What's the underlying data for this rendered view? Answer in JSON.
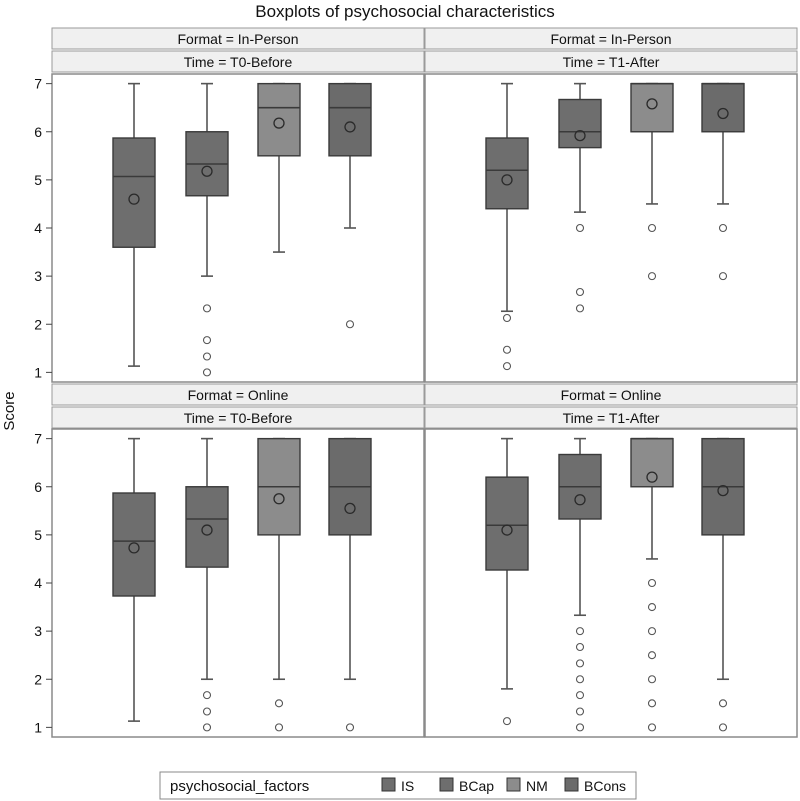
{
  "chart_data": {
    "type": "boxplot",
    "title": "Boxplots of psychosocial characteristics",
    "ylabel": "Score",
    "ylim": [
      0.8,
      7.2
    ],
    "yticks": [
      "1",
      "2",
      "3",
      "4",
      "5",
      "6",
      "7"
    ],
    "legend": {
      "title": "psychosocial_factors",
      "position": "bottom"
    },
    "categories": [
      "IS",
      "BCap",
      "NM",
      "BCons"
    ],
    "colors": {
      "IS": "#6e6e6e",
      "BCap": "#6e6e6e",
      "NM": "#8c8c8c",
      "BCons": "#6b6b6b"
    },
    "panels": [
      {
        "format_label": "Format = In-Person",
        "time_label": "Time = T0-Before",
        "boxes": [
          {
            "factor": "IS",
            "min": 1.13,
            "q1": 3.6,
            "median": 5.07,
            "q3": 5.87,
            "max": 7.0,
            "mean": 4.6,
            "outliers": []
          },
          {
            "factor": "BCap",
            "min": 3.0,
            "q1": 4.67,
            "median": 5.33,
            "q3": 6.0,
            "max": 7.0,
            "mean": 5.18,
            "outliers": [
              2.33,
              1.67,
              1.33,
              1.0
            ]
          },
          {
            "factor": "NM",
            "min": 3.5,
            "q1": 5.5,
            "median": 6.5,
            "q3": 7.0,
            "max": 7.0,
            "mean": 6.18,
            "outliers": []
          },
          {
            "factor": "BCons",
            "min": 4.0,
            "q1": 5.5,
            "median": 6.5,
            "q3": 7.0,
            "max": 7.0,
            "mean": 6.1,
            "outliers": [
              2.0
            ]
          }
        ]
      },
      {
        "format_label": "Format = In-Person",
        "time_label": "Time = T1-After",
        "boxes": [
          {
            "factor": "IS",
            "min": 2.27,
            "q1": 4.4,
            "median": 5.2,
            "q3": 5.87,
            "max": 7.0,
            "mean": 5.0,
            "outliers": [
              2.13,
              1.47,
              1.13
            ]
          },
          {
            "factor": "BCap",
            "min": 4.33,
            "q1": 5.67,
            "median": 6.0,
            "q3": 6.67,
            "max": 7.0,
            "mean": 5.92,
            "outliers": [
              4.0,
              2.67,
              2.33
            ]
          },
          {
            "factor": "NM",
            "min": 4.5,
            "q1": 6.0,
            "median": 7.0,
            "q3": 7.0,
            "max": 7.0,
            "mean": 6.58,
            "outliers": [
              4.0,
              3.0
            ]
          },
          {
            "factor": "BCons",
            "min": 4.5,
            "q1": 6.0,
            "median": 7.0,
            "q3": 7.0,
            "max": 7.0,
            "mean": 6.38,
            "outliers": [
              4.0,
              3.0
            ]
          }
        ]
      },
      {
        "format_label": "Format = Online",
        "time_label": "Time = T0-Before",
        "boxes": [
          {
            "factor": "IS",
            "min": 1.13,
            "q1": 3.73,
            "median": 4.87,
            "q3": 5.87,
            "max": 7.0,
            "mean": 4.73,
            "outliers": []
          },
          {
            "factor": "BCap",
            "min": 2.0,
            "q1": 4.33,
            "median": 5.33,
            "q3": 6.0,
            "max": 7.0,
            "mean": 5.1,
            "outliers": [
              1.67,
              1.33,
              1.0
            ]
          },
          {
            "factor": "NM",
            "min": 2.0,
            "q1": 5.0,
            "median": 6.0,
            "q3": 7.0,
            "max": 7.0,
            "mean": 5.75,
            "outliers": [
              1.5,
              1.0
            ]
          },
          {
            "factor": "BCons",
            "min": 2.0,
            "q1": 5.0,
            "median": 6.0,
            "q3": 7.0,
            "max": 7.0,
            "mean": 5.55,
            "outliers": [
              1.0
            ]
          }
        ]
      },
      {
        "format_label": "Format = Online",
        "time_label": "Time = T1-After",
        "boxes": [
          {
            "factor": "IS",
            "min": 1.8,
            "q1": 4.27,
            "median": 5.2,
            "q3": 6.2,
            "max": 7.0,
            "mean": 5.1,
            "outliers": [
              1.13
            ]
          },
          {
            "factor": "BCap",
            "min": 3.33,
            "q1": 5.33,
            "median": 6.0,
            "q3": 6.67,
            "max": 7.0,
            "mean": 5.73,
            "outliers": [
              3.0,
              2.67,
              2.33,
              2.0,
              1.67,
              1.33,
              1.0
            ]
          },
          {
            "factor": "NM",
            "min": 4.5,
            "q1": 6.0,
            "median": 7.0,
            "q3": 7.0,
            "max": 7.0,
            "mean": 6.2,
            "outliers": [
              4.0,
              3.5,
              3.0,
              2.5,
              2.0,
              1.5,
              1.0
            ]
          },
          {
            "factor": "BCons",
            "min": 2.0,
            "q1": 5.0,
            "median": 6.0,
            "q3": 7.0,
            "max": 7.0,
            "mean": 5.92,
            "outliers": [
              1.5,
              1.0
            ]
          }
        ]
      }
    ]
  }
}
